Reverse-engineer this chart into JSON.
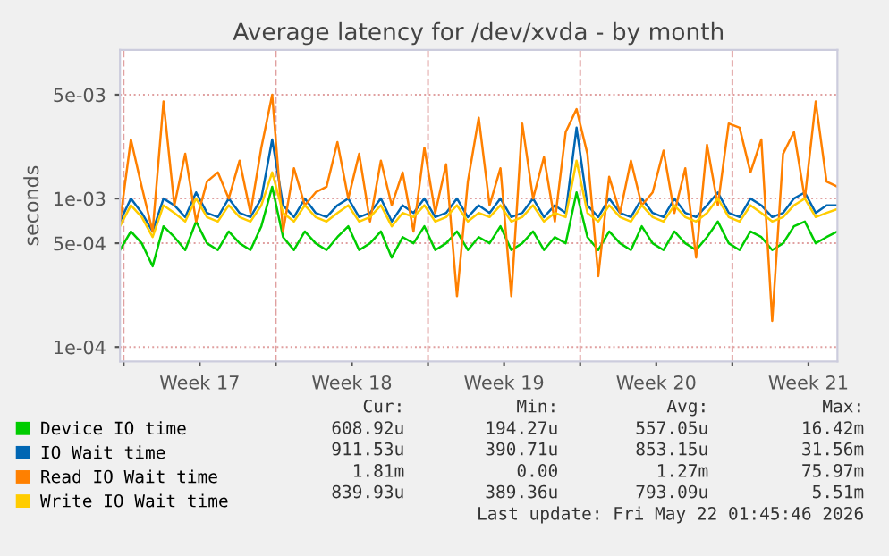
{
  "chart_data": {
    "type": "line",
    "title": "Average latency for /dev/xvda - by month",
    "ylabel": "seconds",
    "x": [
      "2026-04-19T20:00",
      "2026-04-20T08:00",
      "2026-04-20T20:00",
      "2026-04-21T08:00",
      "2026-04-21T20:00",
      "2026-04-22T08:00",
      "2026-04-22T20:00",
      "2026-04-23T08:00",
      "2026-04-23T20:00",
      "2026-04-24T08:00",
      "2026-04-24T20:00",
      "2026-04-25T08:00",
      "2026-04-25T20:00",
      "2026-04-26T08:00",
      "2026-04-26T20:00",
      "2026-04-27T08:00",
      "2026-04-27T20:00",
      "2026-04-28T08:00",
      "2026-04-28T20:00",
      "2026-04-29T08:00",
      "2026-04-29T20:00",
      "2026-04-30T08:00",
      "2026-04-30T20:00",
      "2026-05-01T08:00",
      "2026-05-01T20:00",
      "2026-05-02T08:00",
      "2026-05-02T20:00",
      "2026-05-03T08:00",
      "2026-05-03T20:00",
      "2026-05-04T08:00",
      "2026-05-04T20:00",
      "2026-05-05T08:00",
      "2026-05-05T20:00",
      "2026-05-06T08:00",
      "2026-05-06T20:00",
      "2026-05-07T08:00",
      "2026-05-07T20:00",
      "2026-05-08T08:00",
      "2026-05-08T20:00",
      "2026-05-09T08:00",
      "2026-05-09T20:00",
      "2026-05-10T08:00",
      "2026-05-10T20:00",
      "2026-05-11T08:00",
      "2026-05-11T20:00",
      "2026-05-12T08:00",
      "2026-05-12T20:00",
      "2026-05-13T08:00",
      "2026-05-13T20:00",
      "2026-05-14T08:00",
      "2026-05-14T20:00",
      "2026-05-15T08:00",
      "2026-05-15T20:00",
      "2026-05-16T08:00",
      "2026-05-16T20:00",
      "2026-05-17T08:00",
      "2026-05-17T20:00",
      "2026-05-18T08:00",
      "2026-05-18T20:00",
      "2026-05-19T08:00",
      "2026-05-19T20:00",
      "2026-05-20T08:00",
      "2026-05-20T20:00",
      "2026-05-21T08:00",
      "2026-05-21T20:00",
      "2026-05-22T08:00",
      "2026-05-22T20:00"
    ],
    "series": [
      {
        "name": "Device IO time",
        "color": "#00cc00",
        "values": [
          0.00045,
          0.0006,
          0.0005,
          0.00035,
          0.00065,
          0.00055,
          0.00045,
          0.0007,
          0.0005,
          0.00045,
          0.0006,
          0.0005,
          0.00045,
          0.00065,
          0.0012,
          0.00055,
          0.00045,
          0.0006,
          0.0005,
          0.00045,
          0.00055,
          0.00065,
          0.00045,
          0.0005,
          0.0006,
          0.0004,
          0.00055,
          0.0005,
          0.00065,
          0.00045,
          0.0005,
          0.0006,
          0.00045,
          0.00055,
          0.0005,
          0.00065,
          0.00045,
          0.0005,
          0.0006,
          0.00045,
          0.00055,
          0.0005,
          0.0011,
          0.00055,
          0.00045,
          0.0006,
          0.0005,
          0.00045,
          0.00065,
          0.0005,
          0.00045,
          0.0006,
          0.0005,
          0.00045,
          0.00055,
          0.0007,
          0.0005,
          0.00045,
          0.0006,
          0.00055,
          0.00045,
          0.0005,
          0.00065,
          0.0007,
          0.0005,
          0.00055,
          0.0006
        ]
      },
      {
        "name": "IO Wait time",
        "color": "#0066b3",
        "values": [
          0.0007,
          0.001,
          0.0008,
          0.0006,
          0.001,
          0.0009,
          0.00075,
          0.0011,
          0.0008,
          0.00075,
          0.001,
          0.0008,
          0.00075,
          0.001,
          0.0025,
          0.0009,
          0.00075,
          0.001,
          0.0008,
          0.00075,
          0.0009,
          0.001,
          0.00075,
          0.0008,
          0.001,
          0.0007,
          0.0009,
          0.0008,
          0.001,
          0.00075,
          0.0008,
          0.001,
          0.00075,
          0.0009,
          0.0008,
          0.001,
          0.00075,
          0.0008,
          0.001,
          0.00075,
          0.0009,
          0.0008,
          0.003,
          0.0009,
          0.00075,
          0.001,
          0.0008,
          0.00075,
          0.001,
          0.0008,
          0.00075,
          0.001,
          0.0008,
          0.00075,
          0.0009,
          0.0011,
          0.0008,
          0.00075,
          0.001,
          0.0009,
          0.00075,
          0.0008,
          0.001,
          0.0011,
          0.0008,
          0.0009,
          0.0009
        ]
      },
      {
        "name": "Read IO Wait time",
        "color": "#ff8000",
        "values": [
          0.0007,
          0.0025,
          0.0012,
          0.0006,
          0.0045,
          0.0009,
          0.002,
          0.0007,
          0.0013,
          0.0015,
          0.001,
          0.0018,
          0.0008,
          0.0022,
          0.005,
          0.0006,
          0.0016,
          0.0009,
          0.0011,
          0.0012,
          0.0024,
          0.001,
          0.002,
          0.0007,
          0.0018,
          0.0009,
          0.0015,
          0.0006,
          0.0022,
          0.0008,
          0.0017,
          0.00022,
          0.0013,
          0.0035,
          0.0009,
          0.0016,
          0.00022,
          0.0032,
          0.001,
          0.0019,
          0.0007,
          0.0028,
          0.004,
          0.002,
          0.0003,
          0.0014,
          0.0008,
          0.0018,
          0.0009,
          0.0011,
          0.0021,
          0.0008,
          0.0016,
          0.0004,
          0.0023,
          0.0009,
          0.0032,
          0.003,
          0.0015,
          0.0025,
          0.00015,
          0.002,
          0.0028,
          0.001,
          0.0045,
          0.0013,
          0.0012
        ]
      },
      {
        "name": "Write IO Wait time",
        "color": "#ffcc00",
        "values": [
          0.00065,
          0.0009,
          0.00075,
          0.00055,
          0.0009,
          0.0008,
          0.0007,
          0.001,
          0.00075,
          0.0007,
          0.0009,
          0.00075,
          0.0007,
          0.0009,
          0.0015,
          0.0008,
          0.0007,
          0.0009,
          0.00075,
          0.0007,
          0.0008,
          0.0009,
          0.0007,
          0.00075,
          0.0009,
          0.00065,
          0.0008,
          0.00075,
          0.0009,
          0.0007,
          0.00075,
          0.0009,
          0.0007,
          0.0008,
          0.00075,
          0.0009,
          0.0007,
          0.00075,
          0.0009,
          0.0007,
          0.0008,
          0.00075,
          0.0018,
          0.0008,
          0.0007,
          0.0009,
          0.00075,
          0.0007,
          0.0009,
          0.00075,
          0.0007,
          0.0009,
          0.00075,
          0.0007,
          0.0008,
          0.001,
          0.00075,
          0.0007,
          0.0009,
          0.0008,
          0.0007,
          0.00075,
          0.0009,
          0.001,
          0.00075,
          0.0008,
          0.00085
        ]
      }
    ],
    "log": "y",
    "xlim": [
      "2026-04-19T20:00",
      "2026-05-22T20:00"
    ],
    "ylim": [
      8e-05,
      0.01
    ],
    "yticks": [
      {
        "value": 0.0001,
        "label": "1e-04"
      },
      {
        "value": 0.0005,
        "label": "5e-04"
      },
      {
        "value": 0.001,
        "label": "1e-03"
      },
      {
        "value": 0.005,
        "label": "5e-03"
      }
    ],
    "xticks": [
      {
        "value": "2026-04-20T00:00",
        "label": null
      },
      {
        "value": "2026-04-23T12:00",
        "label": "Week 17"
      },
      {
        "value": "2026-04-27T00:00",
        "label": null
      },
      {
        "value": "2026-04-30T12:00",
        "label": "Week 18"
      },
      {
        "value": "2026-05-04T00:00",
        "label": null
      },
      {
        "value": "2026-05-07T12:00",
        "label": "Week 19"
      },
      {
        "value": "2026-05-11T00:00",
        "label": null
      },
      {
        "value": "2026-05-14T12:00",
        "label": "Week 20"
      },
      {
        "value": "2026-05-18T00:00",
        "label": null
      },
      {
        "value": "2026-05-21T12:00",
        "label": "Week 21"
      }
    ],
    "grid": true,
    "legend": "bottom left",
    "line_style": "solid",
    "marker": "none",
    "annotations": [
      "Cur:",
      "Min:",
      "Avg:",
      "Max:",
      "608.92u",
      "194.27u",
      "557.05u",
      "16.42m",
      "911.53u",
      "390.71u",
      "853.15u",
      "31.56m",
      "1.81m",
      "0.00",
      "1.27m",
      "75.97m",
      "839.93u",
      "389.36u",
      "793.09u",
      "5.51m",
      "Last update: Fri May 22 01:45:46 2026"
    ]
  }
}
